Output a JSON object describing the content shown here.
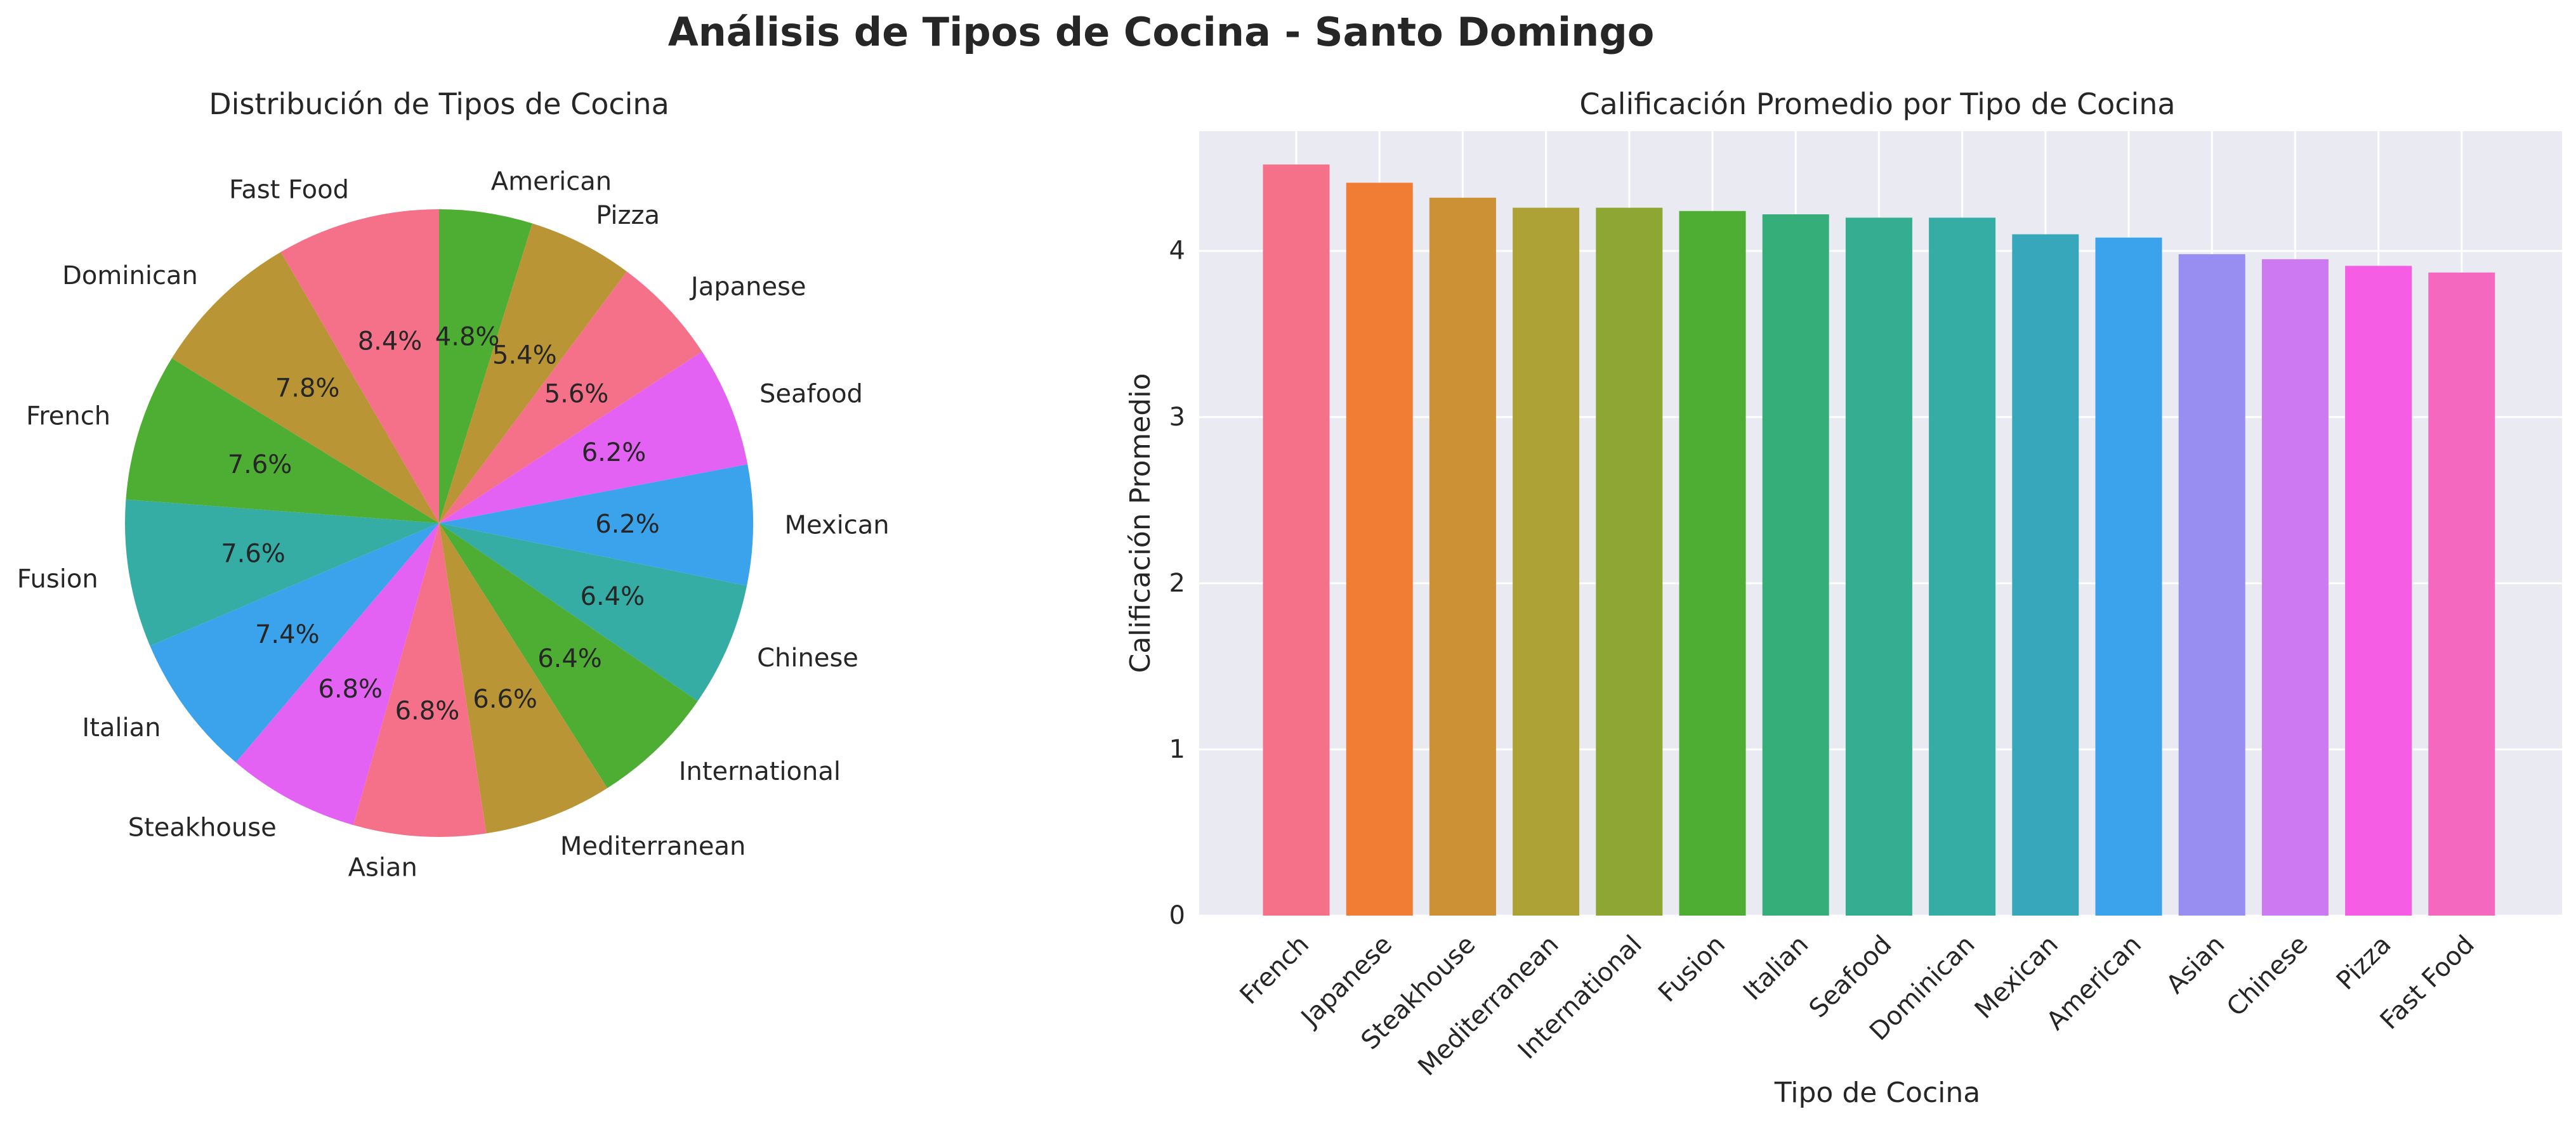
{
  "figure": {
    "suptitle": "Análisis de Tipos de Cocina - Santo Domingo"
  },
  "chart_data": [
    {
      "type": "pie",
      "title": "Distribución de Tipos de Cocina",
      "start_angle_deg": 90,
      "direction": "clockwise",
      "slices": [
        {
          "label": "American",
          "value": 4.8,
          "pct_label": "4.8%",
          "color": "#4eae33"
        },
        {
          "label": "Pizza",
          "value": 5.4,
          "pct_label": "5.4%",
          "color": "#ba9536"
        },
        {
          "label": "Japanese",
          "value": 5.6,
          "pct_label": "5.6%",
          "color": "#f5718a"
        },
        {
          "label": "Seafood",
          "value": 6.2,
          "pct_label": "6.2%",
          "color": "#e362f4"
        },
        {
          "label": "Mexican",
          "value": 6.2,
          "pct_label": "6.2%",
          "color": "#3ba3ec"
        },
        {
          "label": "Chinese",
          "value": 6.4,
          "pct_label": "6.4%",
          "color": "#35aca4"
        },
        {
          "label": "International",
          "value": 6.4,
          "pct_label": "6.4%",
          "color": "#4eae33"
        },
        {
          "label": "Mediterranean",
          "value": 6.6,
          "pct_label": "6.6%",
          "color": "#ba9536"
        },
        {
          "label": "Asian",
          "value": 6.8,
          "pct_label": "6.8%",
          "color": "#f5718a"
        },
        {
          "label": "Steakhouse",
          "value": 6.8,
          "pct_label": "6.8%",
          "color": "#e362f4"
        },
        {
          "label": "Italian",
          "value": 7.4,
          "pct_label": "7.4%",
          "color": "#3ba3ec"
        },
        {
          "label": "Fusion",
          "value": 7.6,
          "pct_label": "7.6%",
          "color": "#35aca4"
        },
        {
          "label": "French",
          "value": 7.6,
          "pct_label": "7.6%",
          "color": "#4eae33"
        },
        {
          "label": "Dominican",
          "value": 7.8,
          "pct_label": "7.8%",
          "color": "#ba9536"
        },
        {
          "label": "Fast Food",
          "value": 8.4,
          "pct_label": "8.4%",
          "color": "#f5718a"
        }
      ]
    },
    {
      "type": "bar",
      "title": "Calificación Promedio por Tipo de Cocina",
      "xlabel": "Tipo de Cocina",
      "ylabel": "Calificación Promedio",
      "ylim": [
        0,
        4.72
      ],
      "yticks": [
        0,
        1,
        2,
        3,
        4
      ],
      "grid": true,
      "background": "#eaeaf2",
      "tick_rotation_deg": 45,
      "categories": [
        "French",
        "Japanese",
        "Steakhouse",
        "Mediterranean",
        "International",
        "Fusion",
        "Italian",
        "Seafood",
        "Dominican",
        "Mexican",
        "American",
        "Asian",
        "Chinese",
        "Pizza",
        "Fast Food"
      ],
      "values": [
        4.52,
        4.41,
        4.32,
        4.26,
        4.26,
        4.24,
        4.22,
        4.2,
        4.2,
        4.1,
        4.08,
        3.98,
        3.95,
        3.91,
        3.87
      ],
      "colors": [
        "#f5718a",
        "#f17c34",
        "#cb9134",
        "#aca235",
        "#8ea734",
        "#4eae33",
        "#36ae79",
        "#34ad90",
        "#35aca4",
        "#37a8bb",
        "#3ba3ec",
        "#988ef2",
        "#cd79f1",
        "#f55de5",
        "#f568c0"
      ]
    }
  ]
}
